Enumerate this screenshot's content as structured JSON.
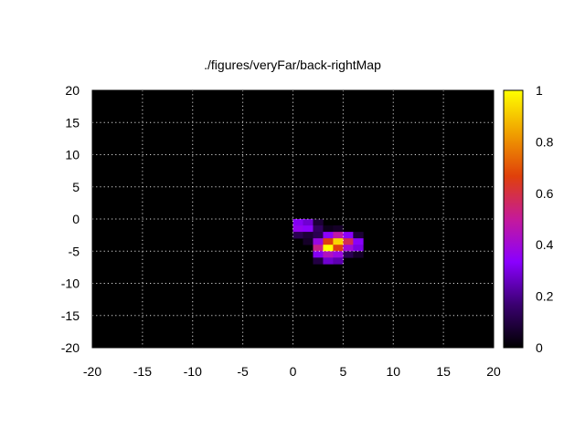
{
  "chart_data": {
    "type": "heatmap",
    "title": "./figures/veryFar/back-rightMap",
    "xlabel": "",
    "ylabel": "",
    "xlim": [
      -20,
      20
    ],
    "ylim": [
      -20,
      20
    ],
    "x_ticks": [
      "-20",
      "-15",
      "-10",
      "-5",
      "0",
      "5",
      "10",
      "15",
      "20"
    ],
    "y_ticks": [
      "-20",
      "-15",
      "-10",
      "-5",
      "0",
      "5",
      "10",
      "15",
      "20"
    ],
    "grid": true,
    "colorbar": {
      "range": [
        0,
        1
      ],
      "ticks": [
        "0",
        "0.2",
        "0.4",
        "0.6",
        "0.8",
        "1"
      ],
      "palette": [
        "#000000",
        "#3a0070",
        "#8a00ff",
        "#c51a9a",
        "#e0400a",
        "#f0a000",
        "#ffff00"
      ]
    },
    "cell_size": 1,
    "cells": [
      {
        "x": 0,
        "y": -1,
        "v": 0.32
      },
      {
        "x": 1,
        "y": -1,
        "v": 0.28
      },
      {
        "x": 2,
        "y": -1,
        "v": 0.08
      },
      {
        "x": 0,
        "y": -2,
        "v": 0.36
      },
      {
        "x": 1,
        "y": -2,
        "v": 0.34
      },
      {
        "x": 2,
        "y": -2,
        "v": 0.14
      },
      {
        "x": 3,
        "y": -2,
        "v": 0.04
      },
      {
        "x": 4,
        "y": -2,
        "v": 0.06
      },
      {
        "x": 0,
        "y": -3,
        "v": 0.12
      },
      {
        "x": 1,
        "y": -3,
        "v": 0.08
      },
      {
        "x": 2,
        "y": -3,
        "v": 0.12
      },
      {
        "x": 3,
        "y": -3,
        "v": 0.34
      },
      {
        "x": 4,
        "y": -3,
        "v": 0.48
      },
      {
        "x": 5,
        "y": -3,
        "v": 0.34
      },
      {
        "x": 6,
        "y": -3,
        "v": 0.08
      },
      {
        "x": 1,
        "y": -4,
        "v": 0.06
      },
      {
        "x": 2,
        "y": -4,
        "v": 0.38
      },
      {
        "x": 3,
        "y": -4,
        "v": 0.66
      },
      {
        "x": 4,
        "y": -4,
        "v": 0.93
      },
      {
        "x": 5,
        "y": -4,
        "v": 0.58
      },
      {
        "x": 6,
        "y": -4,
        "v": 0.33
      },
      {
        "x": 2,
        "y": -5,
        "v": 0.52
      },
      {
        "x": 3,
        "y": -5,
        "v": 1.0
      },
      {
        "x": 4,
        "y": -5,
        "v": 0.66
      },
      {
        "x": 5,
        "y": -5,
        "v": 0.4
      },
      {
        "x": 6,
        "y": -5,
        "v": 0.3
      },
      {
        "x": 2,
        "y": -6,
        "v": 0.32
      },
      {
        "x": 3,
        "y": -6,
        "v": 0.44
      },
      {
        "x": 4,
        "y": -6,
        "v": 0.38
      },
      {
        "x": 5,
        "y": -6,
        "v": 0.12
      },
      {
        "x": 6,
        "y": -6,
        "v": 0.06
      },
      {
        "x": 2,
        "y": -7,
        "v": 0.1
      },
      {
        "x": 3,
        "y": -7,
        "v": 0.28
      },
      {
        "x": 4,
        "y": -7,
        "v": 0.24
      }
    ]
  }
}
